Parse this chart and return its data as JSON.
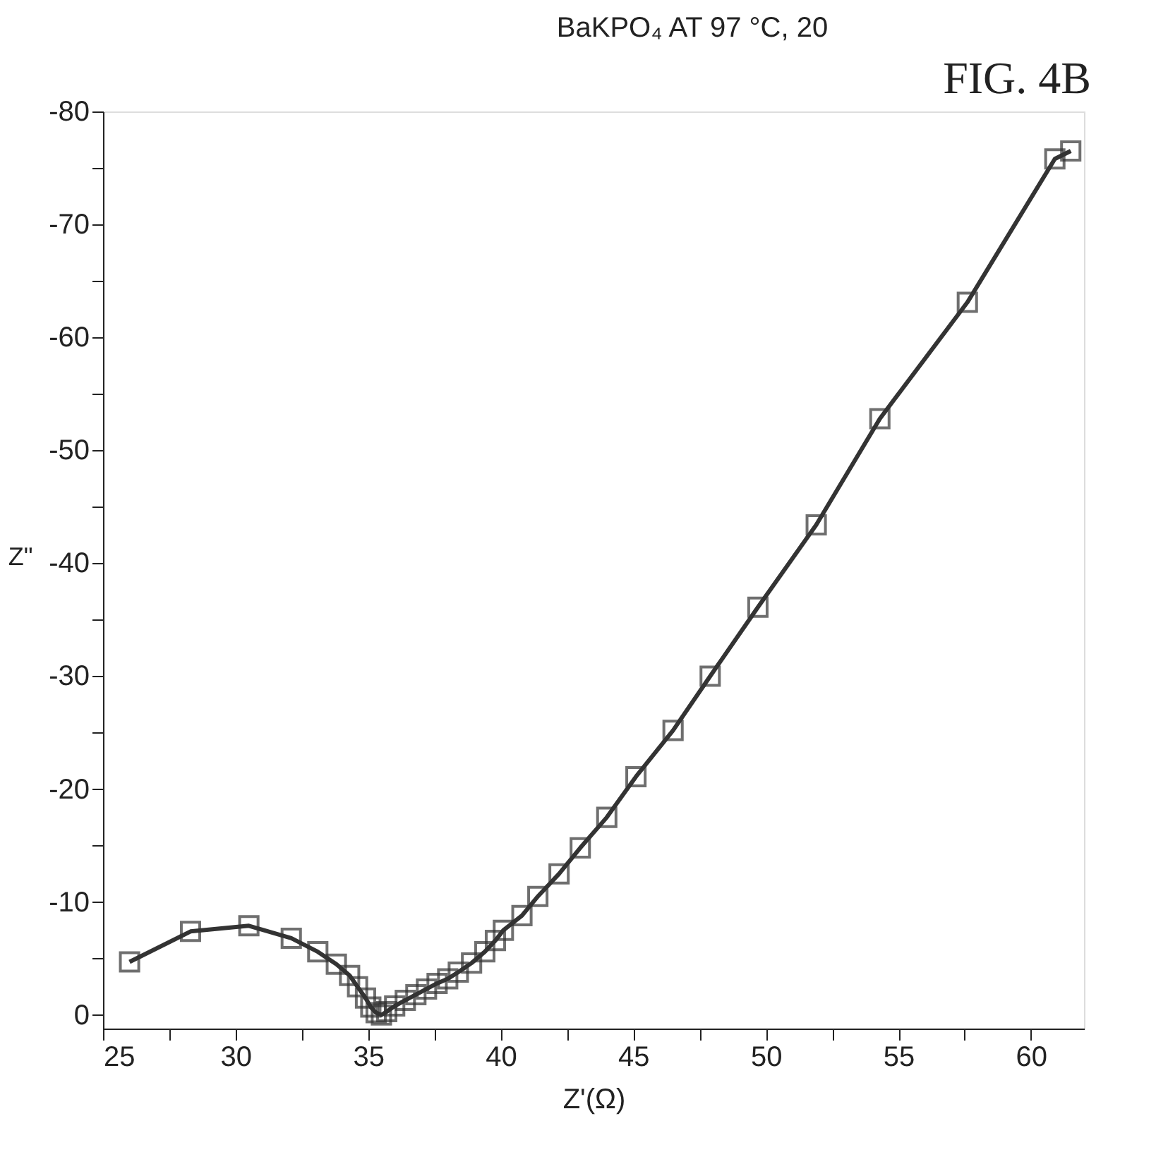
{
  "chart_data": {
    "type": "line",
    "title": "BaKPO₄ AT 97 °C, 20",
    "xlabel": "Z'(Ω)",
    "ylabel": "Z\"",
    "annotations": [
      "FIG. 4B"
    ],
    "x": [
      26.0,
      28.3,
      30.5,
      32.1,
      33.1,
      33.8,
      34.3,
      34.6,
      34.9,
      35.1,
      35.3,
      35.5,
      35.7,
      36.0,
      36.4,
      36.8,
      37.2,
      37.6,
      38.0,
      38.4,
      38.9,
      39.4,
      39.8,
      40.1,
      40.8,
      41.4,
      42.2,
      43.0,
      44.0,
      45.1,
      46.5,
      47.9,
      49.7,
      51.9,
      54.3,
      57.6,
      60.9,
      61.5
    ],
    "series": [
      {
        "color": "#333333",
        "values": [
          -4.7,
          -7.4,
          -7.9,
          -6.8,
          -5.6,
          -4.5,
          -3.5,
          -2.5,
          -1.5,
          -0.7,
          -0.2,
          0,
          -0.3,
          -0.8,
          -1.3,
          -1.8,
          -2.3,
          -2.8,
          -3.2,
          -3.8,
          -4.6,
          -5.6,
          -6.6,
          -7.5,
          -8.8,
          -10.5,
          -12.5,
          -14.8,
          -17.5,
          -21.1,
          -25.2,
          -30.0,
          -36.1,
          -43.4,
          -52.8,
          -63.1,
          -75.8,
          -76.5
        ]
      }
    ],
    "marker": "square",
    "line_style": "solid",
    "grid": false,
    "xlim": [
      25,
      62
    ],
    "ylim": [
      1.2,
      -80
    ],
    "xticks": [
      25,
      {
        "value": 27.5,
        "label": null
      },
      30,
      {
        "value": 32.5,
        "label": null
      },
      35,
      {
        "value": 37.5,
        "label": null
      },
      40,
      {
        "value": 42.5,
        "label": null
      },
      45,
      {
        "value": 47.5,
        "label": null
      },
      50,
      {
        "value": 52.5,
        "label": null
      },
      55,
      {
        "value": 57.5,
        "label": null
      },
      60
    ],
    "yticks": [
      0,
      {
        "value": -5,
        "label": null
      },
      -10,
      {
        "value": -15,
        "label": null
      },
      -20,
      {
        "value": -25,
        "label": null
      },
      -30,
      {
        "value": -35,
        "label": null
      },
      -40,
      {
        "value": -45,
        "label": null
      },
      -50,
      {
        "value": -55,
        "label": null
      },
      -60,
      {
        "value": -65,
        "label": null
      },
      -70,
      {
        "value": -75,
        "label": null
      },
      -80
    ]
  }
}
